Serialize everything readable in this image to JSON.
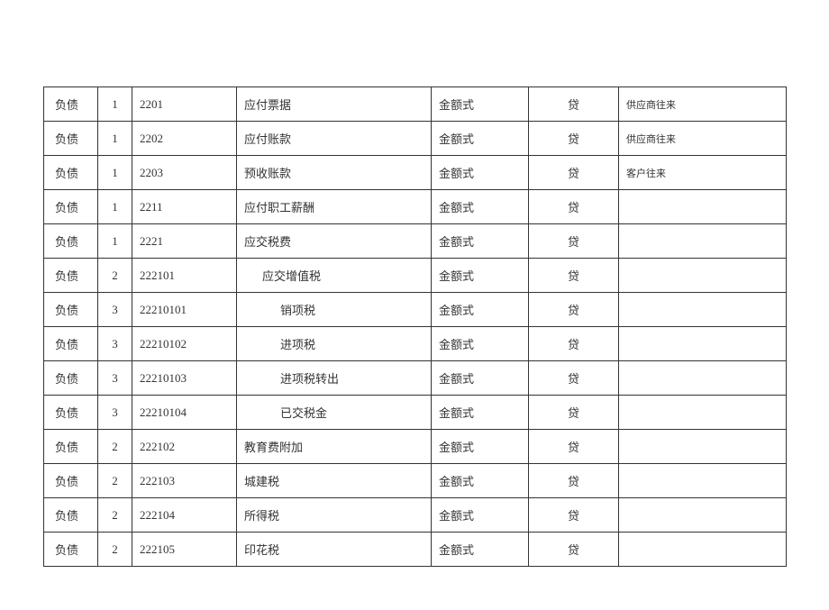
{
  "table": {
    "columns": [
      {
        "key": "category",
        "class": "col-0"
      },
      {
        "key": "level",
        "class": "col-1"
      },
      {
        "key": "code",
        "class": "col-2"
      },
      {
        "key": "name",
        "class": "col-3"
      },
      {
        "key": "format",
        "class": "col-4"
      },
      {
        "key": "direction",
        "class": "col-5"
      },
      {
        "key": "remark",
        "class": "col-6"
      }
    ],
    "rows": [
      {
        "category": "负债",
        "level": "1",
        "code": "2201",
        "name": "应付票据",
        "name_indent": 0,
        "format": "金额式",
        "direction": "贷",
        "remark": "供应商往来"
      },
      {
        "category": "负债",
        "level": "1",
        "code": "2202",
        "name": "应付账款",
        "name_indent": 0,
        "format": "金额式",
        "direction": "贷",
        "remark": "供应商往来"
      },
      {
        "category": "负债",
        "level": "1",
        "code": "2203",
        "name": "预收账款",
        "name_indent": 0,
        "format": "金额式",
        "direction": "贷",
        "remark": "客户往来"
      },
      {
        "category": "负债",
        "level": "1",
        "code": "2211",
        "name": "应付职工薪酬",
        "name_indent": 0,
        "format": "金额式",
        "direction": "贷",
        "remark": ""
      },
      {
        "category": "负债",
        "level": "1",
        "code": "2221",
        "name": "应交税费",
        "name_indent": 0,
        "format": "金额式",
        "direction": "贷",
        "remark": ""
      },
      {
        "category": "负债",
        "level": "2",
        "code": "222101",
        "name": "应交增值税",
        "name_indent": 1,
        "format": "金额式",
        "direction": "贷",
        "remark": ""
      },
      {
        "category": "负债",
        "level": "3",
        "code": "22210101",
        "name": "销项税",
        "name_indent": 2,
        "format": "金额式",
        "direction": "贷",
        "remark": ""
      },
      {
        "category": "负债",
        "level": "3",
        "code": "22210102",
        "name": "进项税",
        "name_indent": 2,
        "format": "金额式",
        "direction": "贷",
        "remark": ""
      },
      {
        "category": "负债",
        "level": "3",
        "code": "22210103",
        "name": "进项税转出",
        "name_indent": 2,
        "format": "金额式",
        "direction": "贷",
        "remark": ""
      },
      {
        "category": "负债",
        "level": "3",
        "code": "22210104",
        "name": "已交税金",
        "name_indent": 2,
        "format": "金额式",
        "direction": "贷",
        "remark": ""
      },
      {
        "category": "负债",
        "level": "2",
        "code": "222102",
        "name": "教育费附加",
        "name_indent": 0,
        "format": "金额式",
        "direction": "贷",
        "remark": ""
      },
      {
        "category": "负债",
        "level": "2",
        "code": "222103",
        "name": "城建税",
        "name_indent": 0,
        "format": "金额式",
        "direction": "贷",
        "remark": ""
      },
      {
        "category": "负债",
        "level": "2",
        "code": "222104",
        "name": "所得税",
        "name_indent": 0,
        "format": "金额式",
        "direction": "贷",
        "remark": ""
      },
      {
        "category": "负债",
        "level": "2",
        "code": "222105",
        "name": "印花税",
        "name_indent": 0,
        "format": "金额式",
        "direction": "贷",
        "remark": ""
      }
    ]
  },
  "style": {
    "background_color": "#ffffff",
    "border_color": "#333333",
    "text_color": "#333333",
    "font_size": 13,
    "remark_font_size": 11
  }
}
